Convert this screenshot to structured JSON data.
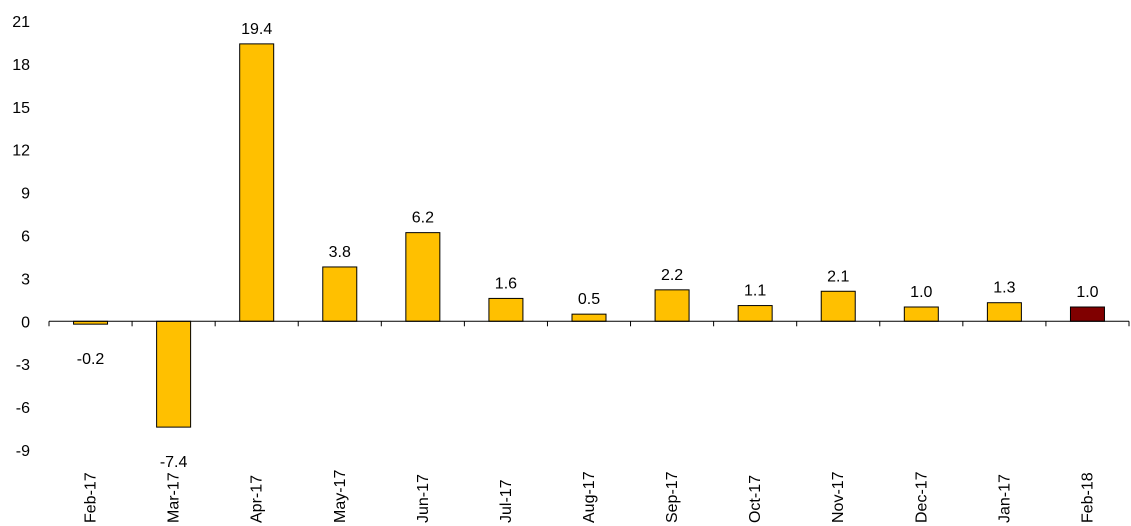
{
  "chart_data": {
    "type": "bar",
    "categories": [
      "Feb-17",
      "Mar-17",
      "Apr-17",
      "May-17",
      "Jun-17",
      "Jul-17",
      "Aug-17",
      "Sep-17",
      "Oct-17",
      "Nov-17",
      "Dec-17",
      "Jan-17",
      "Feb-18"
    ],
    "values": [
      -0.2,
      -7.4,
      19.4,
      3.8,
      6.2,
      1.6,
      0.5,
      2.2,
      1.1,
      2.1,
      1.0,
      1.3,
      1.0
    ],
    "data_labels": [
      "-0.2",
      "-7.4",
      "19.4",
      "3.8",
      "6.2",
      "1.6",
      "0.5",
      "2.2",
      "1.1",
      "2.1",
      "1.0",
      "1.3",
      "1.0"
    ],
    "ylim": [
      -9,
      21
    ],
    "yticks": [
      -9,
      -6,
      -3,
      0,
      3,
      6,
      9,
      12,
      15,
      18,
      21
    ],
    "ytick_labels": [
      "-9",
      "-6",
      "-3",
      "0",
      "3",
      "6",
      "9",
      "12",
      "15",
      "18",
      "21"
    ],
    "grid": false,
    "legend": "none",
    "colors": {
      "bar": "#FFC000",
      "highlight": "#800000",
      "highlight_index": 12
    }
  }
}
